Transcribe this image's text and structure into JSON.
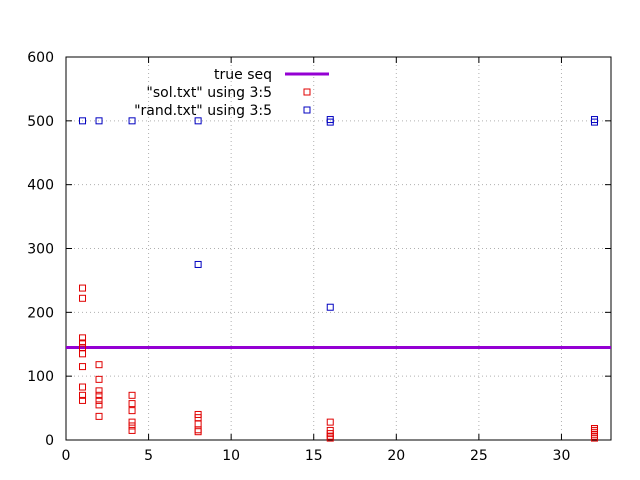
{
  "chart_data": {
    "type": "scatter",
    "xlim": [
      0,
      33
    ],
    "ylim": [
      0,
      600
    ],
    "xticks": [
      0,
      5,
      10,
      15,
      20,
      25,
      30
    ],
    "yticks": [
      0,
      100,
      200,
      300,
      400,
      500,
      600
    ],
    "grid": true,
    "legend_position": "top",
    "lines": [
      {
        "name": "true seq",
        "y": 145,
        "color": "#9400d3"
      }
    ],
    "series": [
      {
        "name": "\"sol.txt\" using 3:5",
        "color": "#e00000",
        "points": [
          [
            1,
            238
          ],
          [
            1,
            222
          ],
          [
            1,
            160
          ],
          [
            1,
            152
          ],
          [
            1,
            145
          ],
          [
            1,
            135
          ],
          [
            1,
            115
          ],
          [
            1,
            83
          ],
          [
            1,
            70
          ],
          [
            1,
            62
          ],
          [
            2,
            118
          ],
          [
            2,
            95
          ],
          [
            2,
            77
          ],
          [
            2,
            70
          ],
          [
            2,
            62
          ],
          [
            2,
            55
          ],
          [
            2,
            37
          ],
          [
            4,
            70
          ],
          [
            4,
            57
          ],
          [
            4,
            46
          ],
          [
            4,
            28
          ],
          [
            4,
            22
          ],
          [
            4,
            15
          ],
          [
            8,
            40
          ],
          [
            8,
            35
          ],
          [
            8,
            25
          ],
          [
            8,
            16
          ],
          [
            8,
            13
          ],
          [
            16,
            28
          ],
          [
            16,
            15
          ],
          [
            16,
            10
          ],
          [
            16,
            6
          ],
          [
            16,
            3
          ],
          [
            32,
            18
          ],
          [
            32,
            15
          ],
          [
            32,
            12
          ],
          [
            32,
            9
          ],
          [
            32,
            6
          ],
          [
            32,
            3
          ]
        ]
      },
      {
        "name": "\"rand.txt\" using 3:5",
        "color": "#0000c0",
        "points": [
          [
            1,
            500
          ],
          [
            2,
            500
          ],
          [
            4,
            500
          ],
          [
            8,
            500
          ],
          [
            8,
            275
          ],
          [
            16,
            502
          ],
          [
            16,
            498
          ],
          [
            16,
            208
          ],
          [
            32,
            502
          ],
          [
            32,
            498
          ]
        ]
      }
    ]
  }
}
